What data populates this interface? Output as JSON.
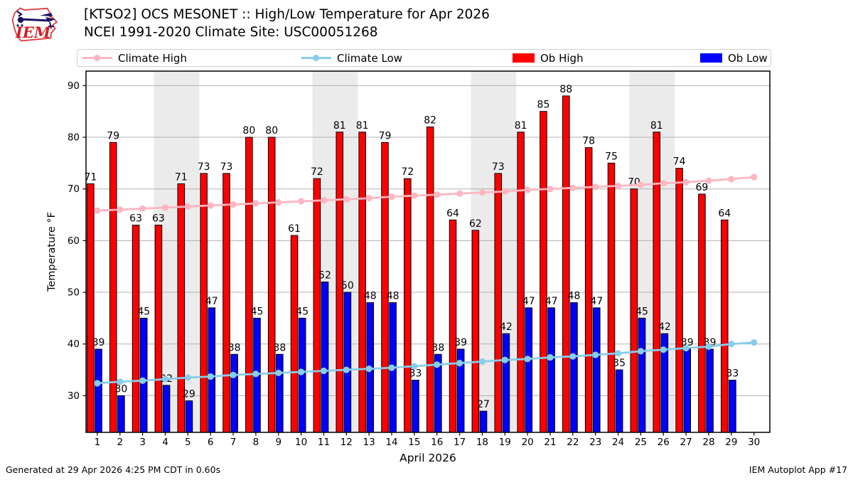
{
  "header": {
    "title_line1": "[KTSO2] OCS MESONET :: High/Low Temperature for Apr 2026",
    "title_line2": "NCEI 1991-2020 Climate Site: USC00051268",
    "logo_text": "IEM"
  },
  "legend": [
    {
      "label": "Climate High",
      "type": "line",
      "color": "#FFB6C1"
    },
    {
      "label": "Climate Low",
      "type": "line",
      "color": "#87CEEB"
    },
    {
      "label": "Ob High",
      "type": "patch",
      "color": "#FF0000"
    },
    {
      "label": "Ob Low",
      "type": "patch",
      "color": "#0000FF"
    }
  ],
  "footer": {
    "left": "Generated at 29 Apr 2026 4:25 PM CDT in 0.60s",
    "right": "IEM Autoplot App #17"
  },
  "chart_data": {
    "type": "bar",
    "title": "[KTSO2] OCS MESONET :: High/Low Temperature for Apr 2026",
    "subtitle": "NCEI 1991-2020 Climate Site: USC00051268",
    "xlabel": "April 2026",
    "ylabel": "Temperature °F",
    "x_days": [
      1,
      2,
      3,
      4,
      5,
      6,
      7,
      8,
      9,
      10,
      11,
      12,
      13,
      14,
      15,
      16,
      17,
      18,
      19,
      20,
      21,
      22,
      23,
      24,
      25,
      26,
      27,
      28,
      29,
      30
    ],
    "xlim": [
      0.5,
      30.7
    ],
    "ylim": [
      22.9,
      92.8
    ],
    "yticks": [
      30,
      40,
      50,
      60,
      70,
      80,
      90
    ],
    "grid": "horizontal",
    "grid_color": "#B0B0B0",
    "band_color": "#EBEBEB",
    "weekend_bands": [
      [
        3.5,
        5.5
      ],
      [
        10.5,
        12.5
      ],
      [
        17.5,
        19.5
      ],
      [
        24.5,
        26.5
      ]
    ],
    "legend_position": "top",
    "series": [
      {
        "name": "Ob High",
        "type": "bar",
        "color": "#FF0000",
        "days": [
          1,
          2,
          3,
          4,
          5,
          6,
          7,
          8,
          9,
          10,
          11,
          12,
          13,
          14,
          15,
          16,
          17,
          18,
          19,
          20,
          21,
          22,
          23,
          24,
          25,
          26,
          27,
          28,
          29
        ],
        "values": [
          71,
          79,
          63,
          63,
          71,
          73,
          73,
          80,
          80,
          61,
          72,
          81,
          81,
          79,
          72,
          82,
          64,
          62,
          73,
          81,
          85,
          88,
          78,
          75,
          70,
          81,
          74,
          69,
          64
        ]
      },
      {
        "name": "Ob Low",
        "type": "bar",
        "color": "#0000FF",
        "days": [
          1,
          2,
          3,
          4,
          5,
          6,
          7,
          8,
          9,
          10,
          11,
          12,
          13,
          14,
          15,
          16,
          17,
          18,
          19,
          20,
          21,
          22,
          23,
          24,
          25,
          26,
          27,
          28,
          29
        ],
        "values": [
          39,
          30,
          45,
          32,
          29,
          47,
          38,
          45,
          38,
          45,
          52,
          50,
          48,
          48,
          33,
          38,
          39,
          27,
          42,
          47,
          47,
          48,
          47,
          35,
          45,
          42,
          39,
          39,
          33
        ]
      },
      {
        "name": "Climate High",
        "type": "line",
        "color": "#FFB6C1",
        "days": [
          1,
          2,
          3,
          4,
          5,
          6,
          7,
          8,
          9,
          10,
          11,
          12,
          13,
          14,
          15,
          16,
          17,
          18,
          19,
          20,
          21,
          22,
          23,
          24,
          25,
          26,
          27,
          28,
          29,
          30
        ],
        "values": [
          65.8,
          66.0,
          66.2,
          66.4,
          66.6,
          66.8,
          67.0,
          67.2,
          67.4,
          67.6,
          67.8,
          68.0,
          68.2,
          68.5,
          68.7,
          68.9,
          69.1,
          69.3,
          69.5,
          69.8,
          70.0,
          70.2,
          70.4,
          70.6,
          70.8,
          71.1,
          71.3,
          71.6,
          71.9,
          72.3
        ]
      },
      {
        "name": "Climate Low",
        "type": "line",
        "color": "#87CEEB",
        "days": [
          1,
          2,
          3,
          4,
          5,
          6,
          7,
          8,
          9,
          10,
          11,
          12,
          13,
          14,
          15,
          16,
          17,
          18,
          19,
          20,
          21,
          22,
          23,
          24,
          25,
          26,
          27,
          28,
          29,
          30
        ],
        "values": [
          32.4,
          32.7,
          32.9,
          33.2,
          33.5,
          33.7,
          34.0,
          34.2,
          34.4,
          34.6,
          34.8,
          35.0,
          35.2,
          35.4,
          35.7,
          36.0,
          36.3,
          36.6,
          36.9,
          37.1,
          37.4,
          37.6,
          37.9,
          38.2,
          38.6,
          38.9,
          39.2,
          39.5,
          40.0,
          40.3
        ]
      }
    ]
  }
}
